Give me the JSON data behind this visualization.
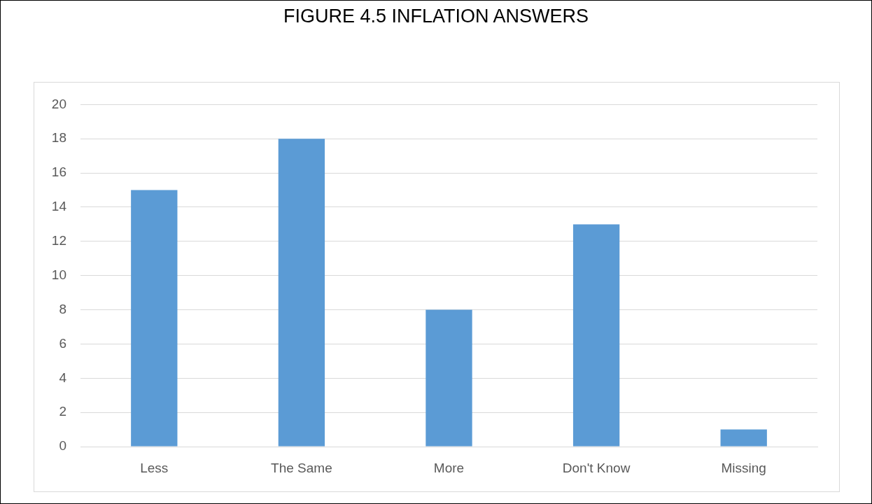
{
  "chart_data": {
    "type": "bar",
    "title": "FIGURE 4.5 INFLATION ANSWERS",
    "categories": [
      "Less",
      "The Same",
      "More",
      "Don't Know",
      "Missing"
    ],
    "values": [
      15,
      18,
      8,
      13,
      1
    ],
    "color": "#5b9bd5",
    "ylim": [
      0,
      20
    ],
    "yticks": [
      0,
      2,
      4,
      6,
      8,
      10,
      12,
      14,
      16,
      18,
      20
    ],
    "grid": "y",
    "legend": false
  }
}
